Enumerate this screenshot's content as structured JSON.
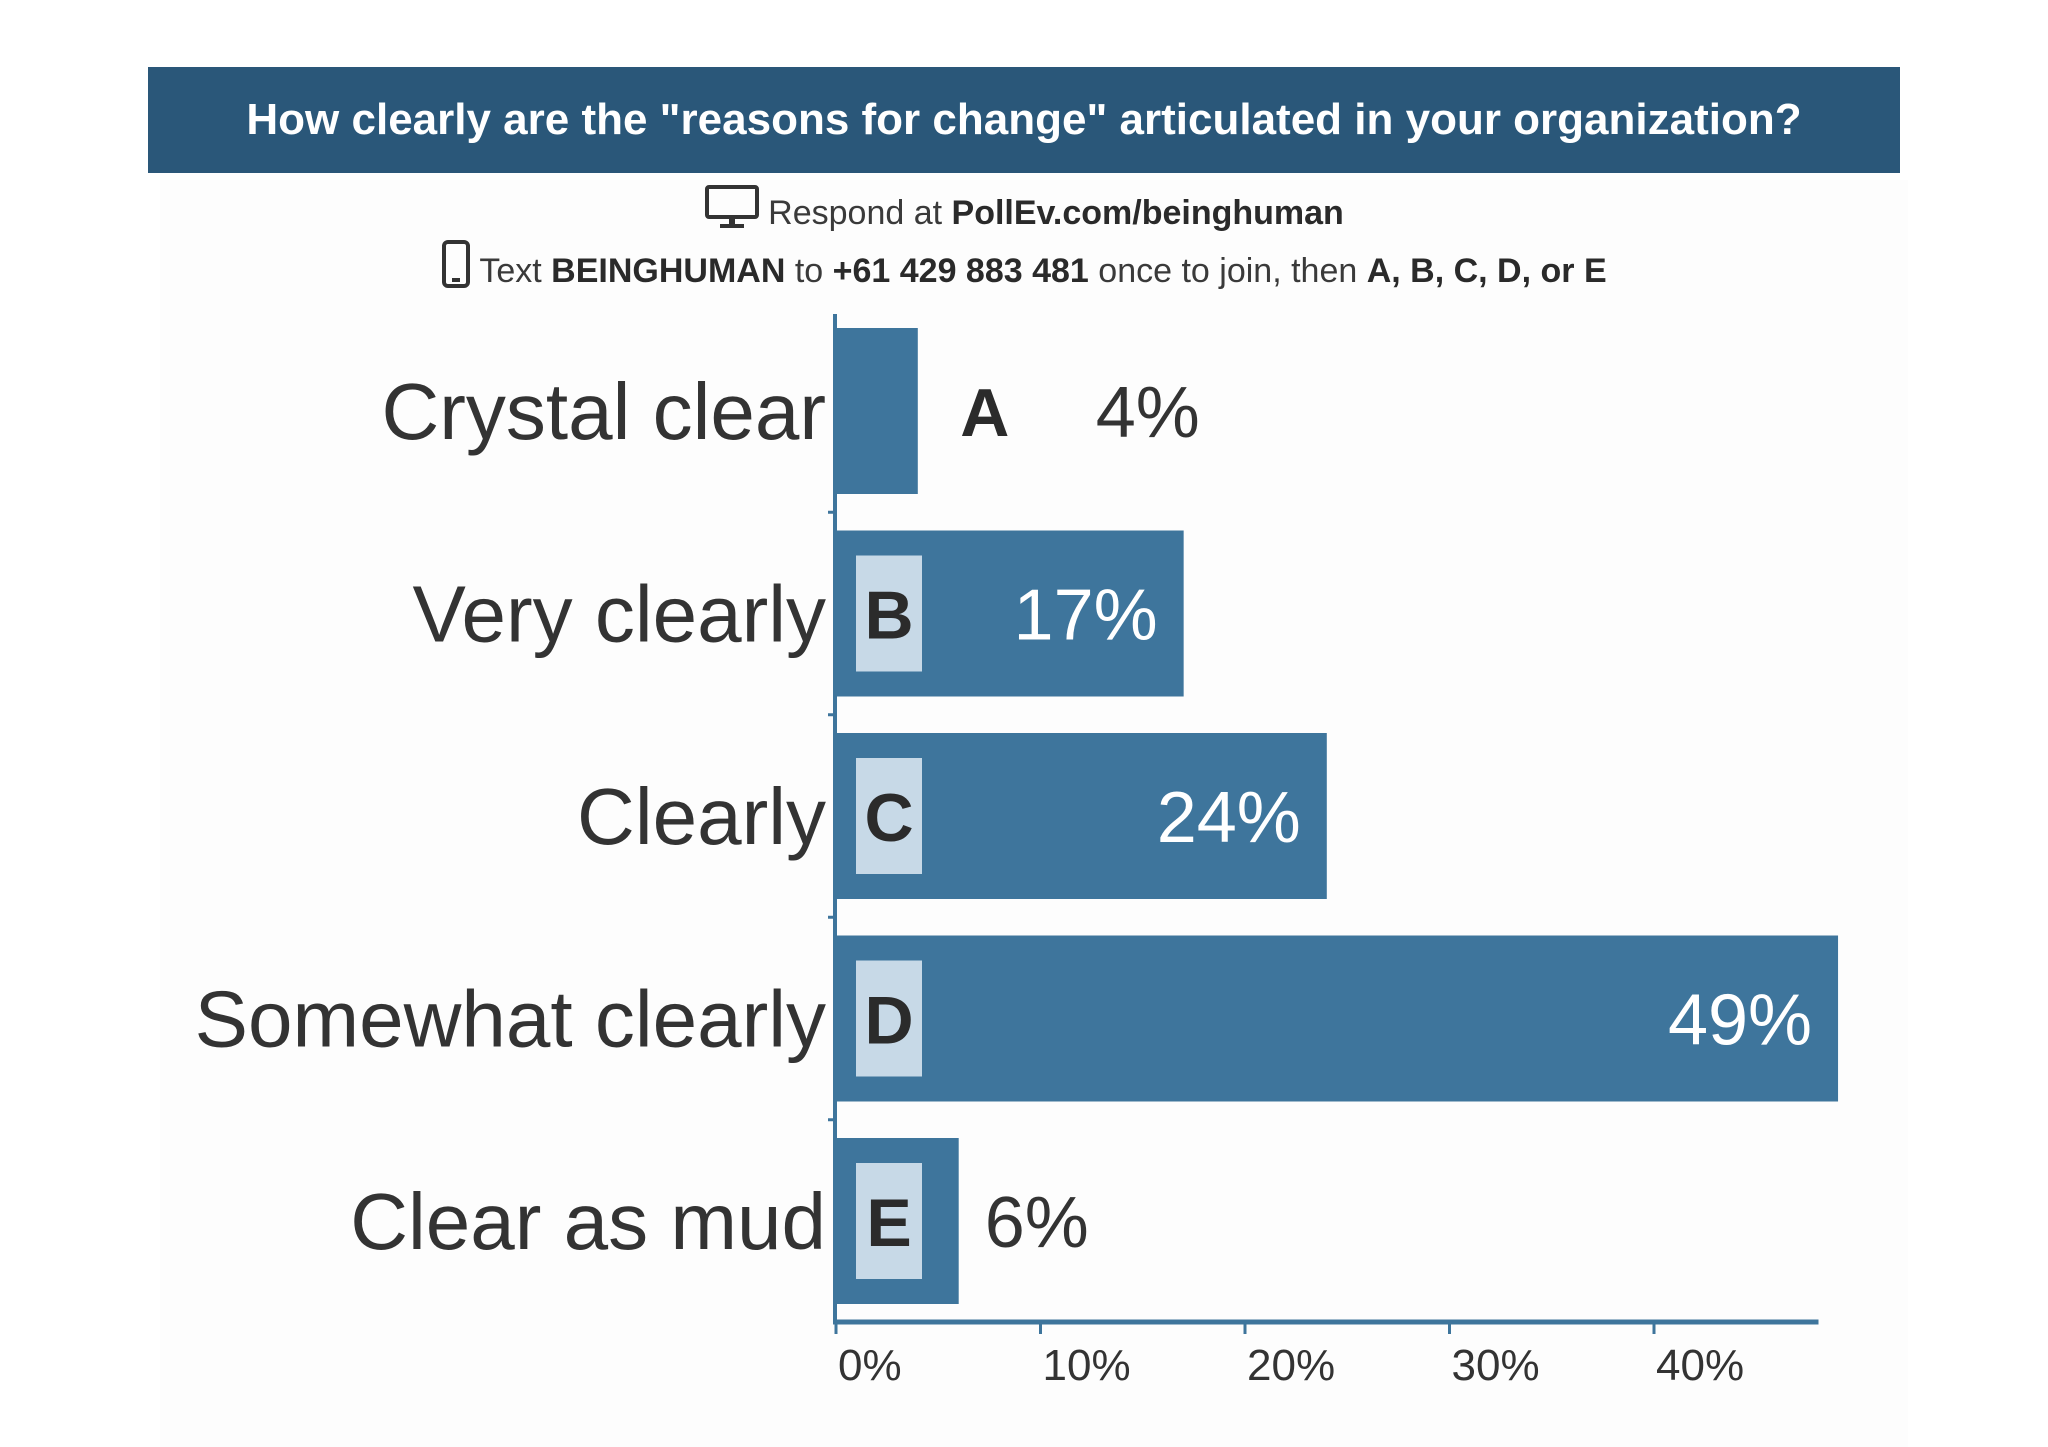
{
  "title": "How clearly are the \"reasons for change\" articulated in your organization?",
  "instructions": {
    "line1_prefix": "Respond at ",
    "line1_url": "PollEv.com/beinghuman",
    "line2_text": "Text ",
    "line2_keyword": "BEINGHUMAN",
    "line2_to": " to ",
    "line2_number": "+61 429 883 481",
    "line2_join": " once to join, then ",
    "line2_options": "A, B, C, D, or E"
  },
  "icons": {
    "monitor": "monitor-icon",
    "phone": "phone-icon"
  },
  "colors": {
    "banner": "#2a5779",
    "bar": "#3e759c",
    "badge": "#c7d9e7",
    "axis": "#3e759c"
  },
  "chart_data": {
    "type": "bar",
    "orientation": "horizontal",
    "categories": [
      "Crystal clear",
      "Very clearly",
      "Clearly",
      "Somewhat clearly",
      "Clear as mud"
    ],
    "letters": [
      "A",
      "B",
      "C",
      "D",
      "E"
    ],
    "values": [
      4,
      17,
      24,
      49,
      6
    ],
    "value_labels": [
      "4%",
      "17%",
      "24%",
      "49%",
      "6%"
    ],
    "xticks": [
      "0%",
      "10%",
      "20%",
      "30%",
      "40%"
    ],
    "xtick_values": [
      0,
      10,
      20,
      30,
      40
    ],
    "xlim": [
      0,
      50
    ],
    "title": "",
    "xlabel": "",
    "ylabel": "",
    "grid": false,
    "legend": "none"
  }
}
